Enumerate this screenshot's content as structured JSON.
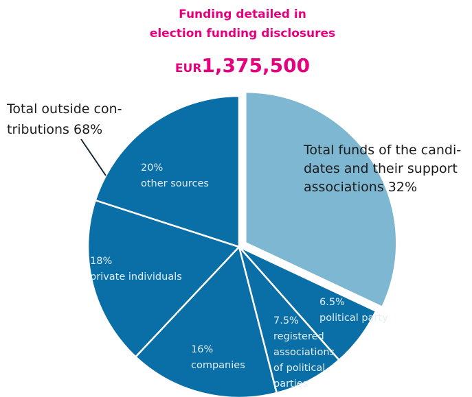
{
  "chart_data": {
    "type": "pie",
    "title": [
      "Funding detailed in",
      "election funding disclosures"
    ],
    "total": {
      "unit": "EUR",
      "amount": "1,375,500"
    },
    "categories": [
      "Total funds of the candidates and their support associations",
      "political party",
      "registered associations of political parties",
      "companies",
      "private individuals",
      "other sources"
    ],
    "values": [
      32,
      6.5,
      7.5,
      16,
      18,
      20
    ],
    "value_labels": [
      "32%",
      "6.5%",
      "7.5%",
      "16%",
      "18%",
      "20%"
    ],
    "colors": [
      "#7db7d1",
      "#0a6fa6",
      "#0a6fa6",
      "#0a6fa6",
      "#0a6fa6",
      "#0a6fa6"
    ],
    "exploded": [
      0
    ],
    "annotations": [
      {
        "lines": [
          "Total outside con-",
          "tributions 68%"
        ]
      },
      {
        "lines": [
          "Total funds of the candi-",
          "dates and their support",
          "associations 32%"
        ]
      }
    ]
  }
}
